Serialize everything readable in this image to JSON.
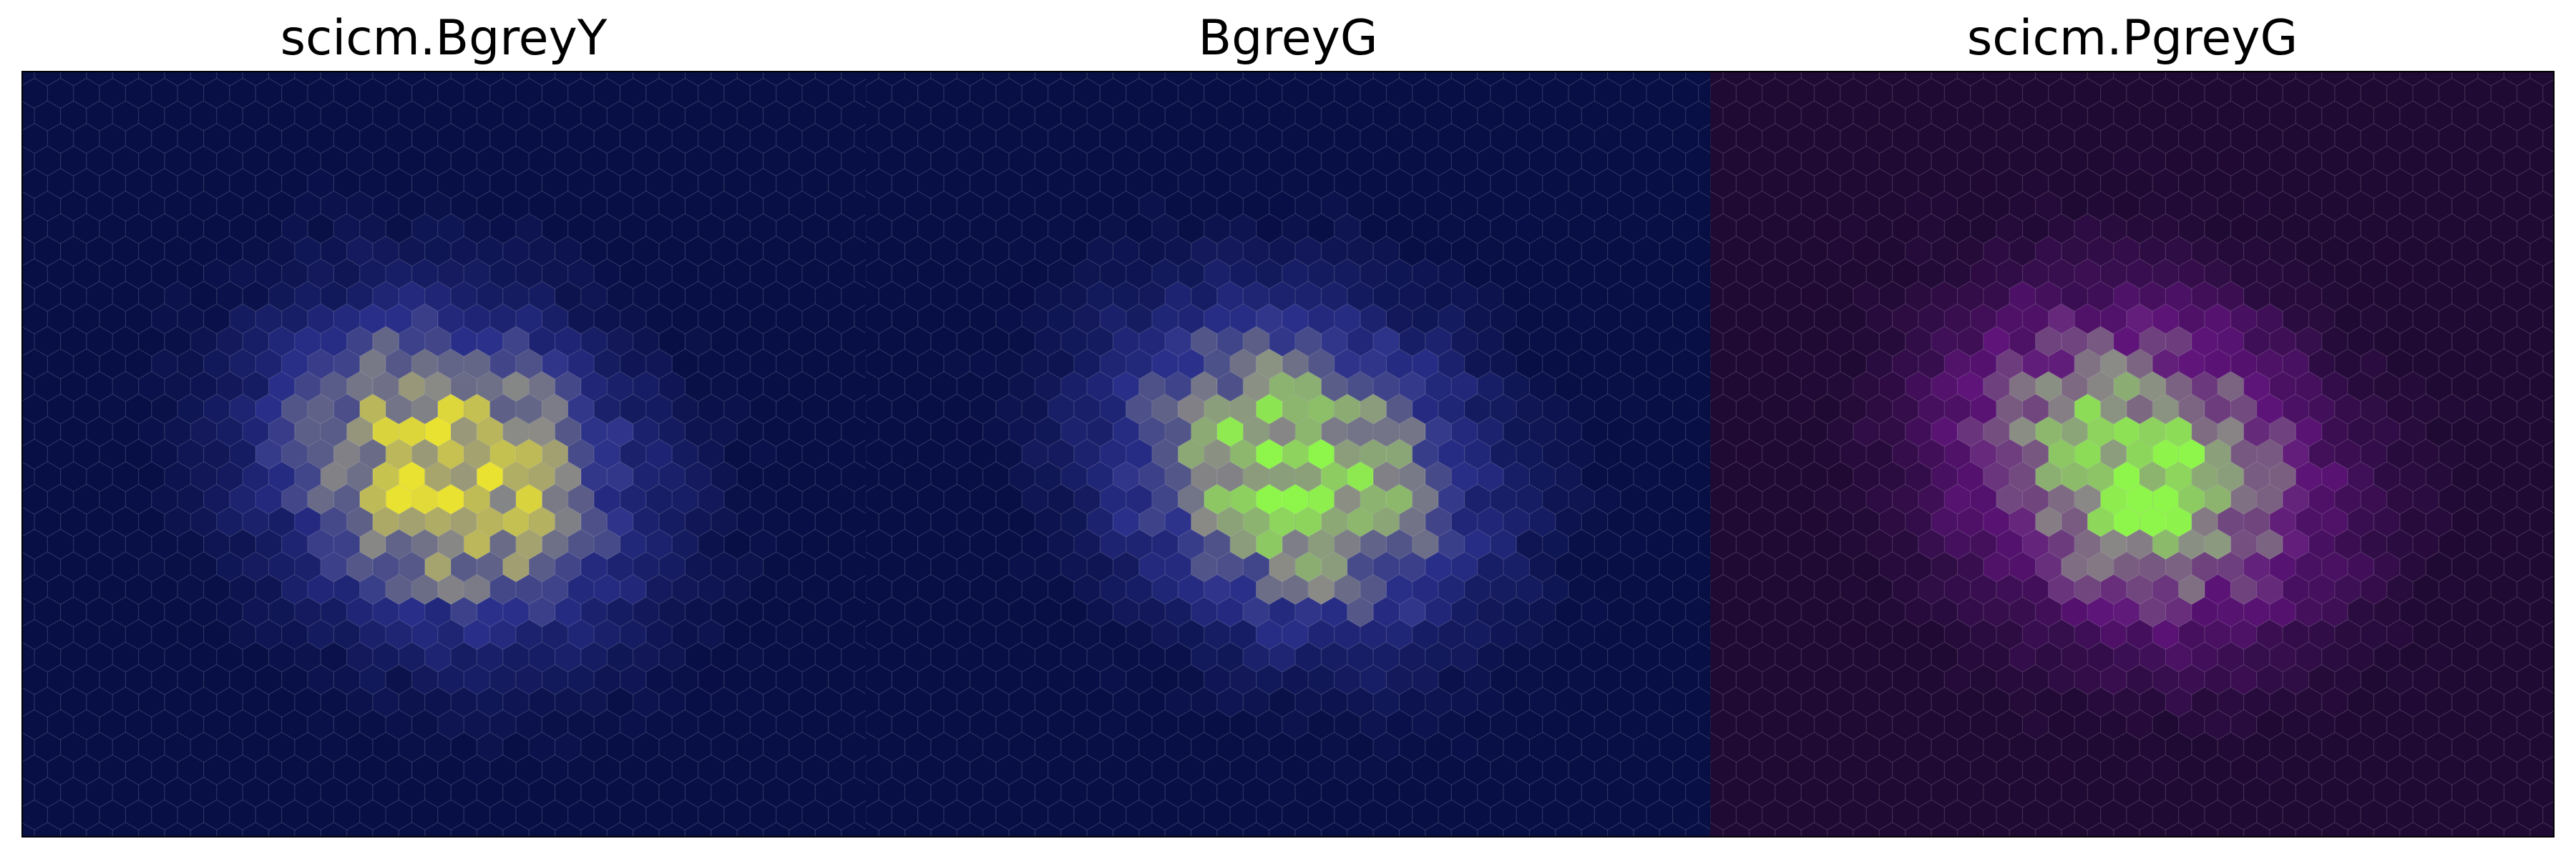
{
  "chart_data": [
    {
      "type": "heatmap",
      "subtype": "hexbin",
      "title": "scicm.BgreyY",
      "colormap": "scicm.BgreyY",
      "colors": {
        "low": "#080f45",
        "mid": "#2a2f8a",
        "grey": "#8a8a86",
        "high": "#e9e230"
      },
      "xlabel": "",
      "ylabel": "",
      "axes_visible": false,
      "grid": false,
      "distribution": {
        "shape": "2D gaussian blob",
        "peak_location": "center-left of panel",
        "peak_count_relative": 1.0
      }
    },
    {
      "type": "heatmap",
      "subtype": "hexbin",
      "title": "BgreyG",
      "colormap": "BgreyG",
      "colors": {
        "low": "#080f45",
        "mid": "#2a2f8a",
        "grey": "#8a8a86",
        "high": "#8ef54a"
      },
      "xlabel": "",
      "ylabel": "",
      "axes_visible": false,
      "grid": false,
      "distribution": {
        "shape": "2D gaussian blob",
        "peak_location": "center of panel",
        "peak_count_relative": 1.0
      }
    },
    {
      "type": "heatmap",
      "subtype": "hexbin",
      "title": "scicm.PgreyG",
      "colormap": "scicm.PgreyG",
      "colors": {
        "low": "#1f0a33",
        "mid": "#5e1479",
        "grey": "#8a8a86",
        "high": "#8ef54a"
      },
      "xlabel": "",
      "ylabel": "",
      "axes_visible": false,
      "grid": false,
      "distribution": {
        "shape": "2D gaussian blob",
        "peak_location": "center of panel",
        "peak_count_relative": 1.0
      }
    }
  ]
}
